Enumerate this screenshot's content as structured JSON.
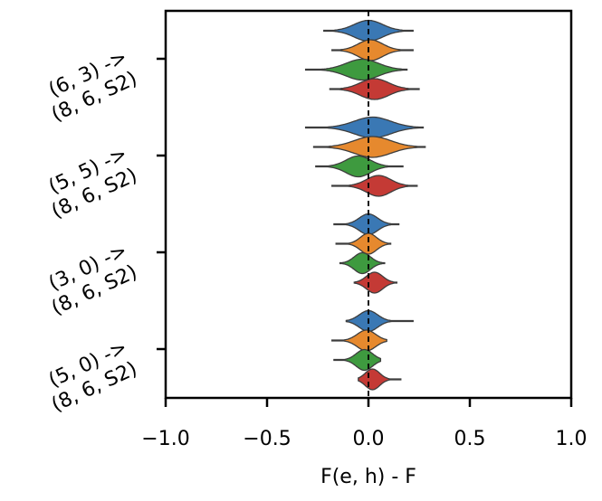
{
  "chart_data": {
    "type": "violin",
    "orientation": "horizontal",
    "xlabel": "F(e, h) - F",
    "ylabel": "",
    "title": "",
    "xlim": [
      -1.0,
      1.0
    ],
    "xticks": [
      -1.0,
      -0.5,
      0.0,
      0.5,
      1.0
    ],
    "xtick_labels": [
      "−1.0",
      "−0.5",
      "0.0",
      "0.5",
      "1.0"
    ],
    "reference_line": {
      "x": 0.0,
      "style": "dashed"
    },
    "colors": [
      "#3a78b4",
      "#e6892e",
      "#3e9a3f",
      "#c43a35"
    ],
    "categories": [
      {
        "label_line1": "(6, 3) ->",
        "label_line2": "(8, 6, S2)",
        "violins": [
          {
            "min": -0.22,
            "max": 0.22,
            "median": 0.0,
            "spread": 0.07
          },
          {
            "min": -0.18,
            "max": 0.22,
            "median": 0.01,
            "spread": 0.06
          },
          {
            "min": -0.31,
            "max": 0.19,
            "median": -0.03,
            "spread": 0.08
          },
          {
            "min": -0.19,
            "max": 0.25,
            "median": 0.03,
            "spread": 0.07
          }
        ]
      },
      {
        "label_line1": "(5, 5) ->",
        "label_line2": "(8, 6, S2)",
        "violins": [
          {
            "min": -0.31,
            "max": 0.27,
            "median": 0.02,
            "spread": 0.09
          },
          {
            "min": -0.27,
            "max": 0.28,
            "median": 0.02,
            "spread": 0.09
          },
          {
            "min": -0.26,
            "max": 0.17,
            "median": -0.05,
            "spread": 0.06
          },
          {
            "min": -0.18,
            "max": 0.24,
            "median": 0.05,
            "spread": 0.06
          }
        ]
      },
      {
        "label_line1": "(3, 0) ->",
        "label_line2": "(8, 6, S2)",
        "violins": [
          {
            "min": -0.17,
            "max": 0.15,
            "median": 0.0,
            "spread": 0.045
          },
          {
            "min": -0.16,
            "max": 0.11,
            "median": 0.0,
            "spread": 0.04
          },
          {
            "min": -0.14,
            "max": 0.08,
            "median": -0.03,
            "spread": 0.04
          },
          {
            "min": -0.07,
            "max": 0.14,
            "median": 0.03,
            "spread": 0.04
          }
        ]
      },
      {
        "label_line1": "(5, 0) ->",
        "label_line2": "(8, 6, S2)",
        "violins": [
          {
            "min": -0.11,
            "max": 0.22,
            "median": 0.0,
            "spread": 0.045
          },
          {
            "min": -0.18,
            "max": 0.09,
            "median": -0.01,
            "spread": 0.045
          },
          {
            "min": -0.17,
            "max": 0.06,
            "median": -0.02,
            "spread": 0.04
          },
          {
            "min": -0.05,
            "max": 0.16,
            "median": 0.02,
            "spread": 0.035
          }
        ]
      }
    ]
  }
}
